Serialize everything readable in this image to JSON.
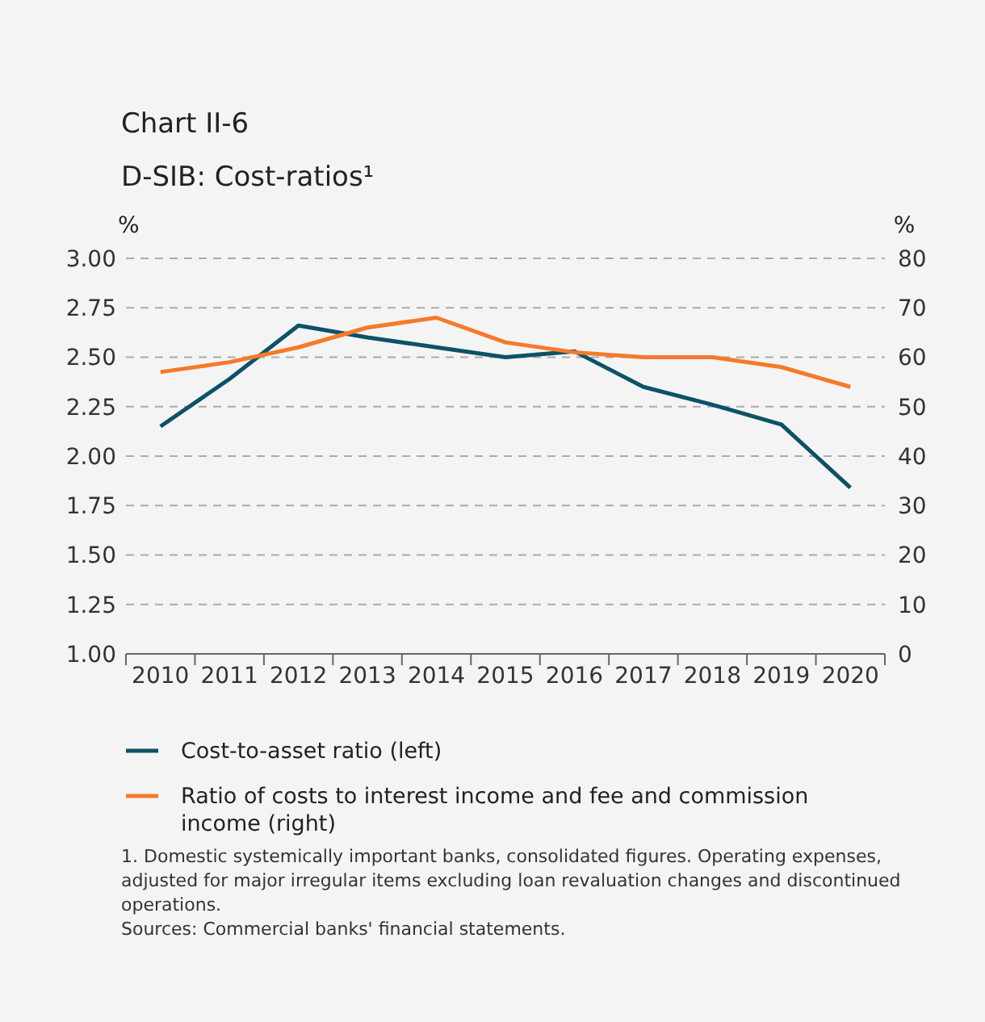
{
  "chart_data": {
    "type": "line",
    "title": "Chart II-6",
    "subtitle": "D-SIB: Cost-ratios¹",
    "ylabel": "%",
    "y2label": "%",
    "categories": [
      "2010",
      "2011",
      "2012",
      "2013",
      "2014",
      "2015",
      "2016",
      "2017",
      "2018",
      "2019",
      "2020"
    ],
    "series": [
      {
        "name": "Cost-to-asset ratio (left)",
        "color": "#0d5168",
        "values": [
          2.15,
          2.39,
          2.66,
          2.6,
          2.55,
          2.5,
          2.53,
          2.35,
          2.26,
          2.16,
          1.84
        ]
      },
      {
        "name": "Ratio of costs to interest income and fee and commission income (right)",
        "color": "#f47a2a",
        "axis": "y2",
        "values": [
          57,
          59,
          62,
          66,
          68,
          63,
          61,
          60,
          60,
          58,
          54
        ]
      }
    ],
    "ylim": [
      1,
      3
    ],
    "yticks": [
      {
        "value": 1,
        "label": "1.00"
      },
      {
        "value": 1.25,
        "label": "1.25"
      },
      {
        "value": 1.5,
        "label": "1.50"
      },
      {
        "value": 1.75,
        "label": "1.75"
      },
      {
        "value": 2,
        "label": "2.00"
      },
      {
        "value": 2.25,
        "label": "2.25"
      },
      {
        "value": 2.5,
        "label": "2.50"
      },
      {
        "value": 2.75,
        "label": "2.75"
      },
      {
        "value": 3,
        "label": "3.00"
      }
    ],
    "y2lim": [
      0,
      80
    ],
    "y2ticks": [
      0,
      10,
      20,
      30,
      40,
      50,
      60,
      70,
      80
    ],
    "grid": "y",
    "legend": "bottom",
    "line_style": "solid",
    "marker": "none",
    "annotations": [
      "1. Domestic systemically important banks, consolidated figures. Operating expenses, adjusted for major irregular items excluding loan revaluation changes and discontinued operations.",
      "Sources: Commercial banks' financial statements."
    ]
  }
}
